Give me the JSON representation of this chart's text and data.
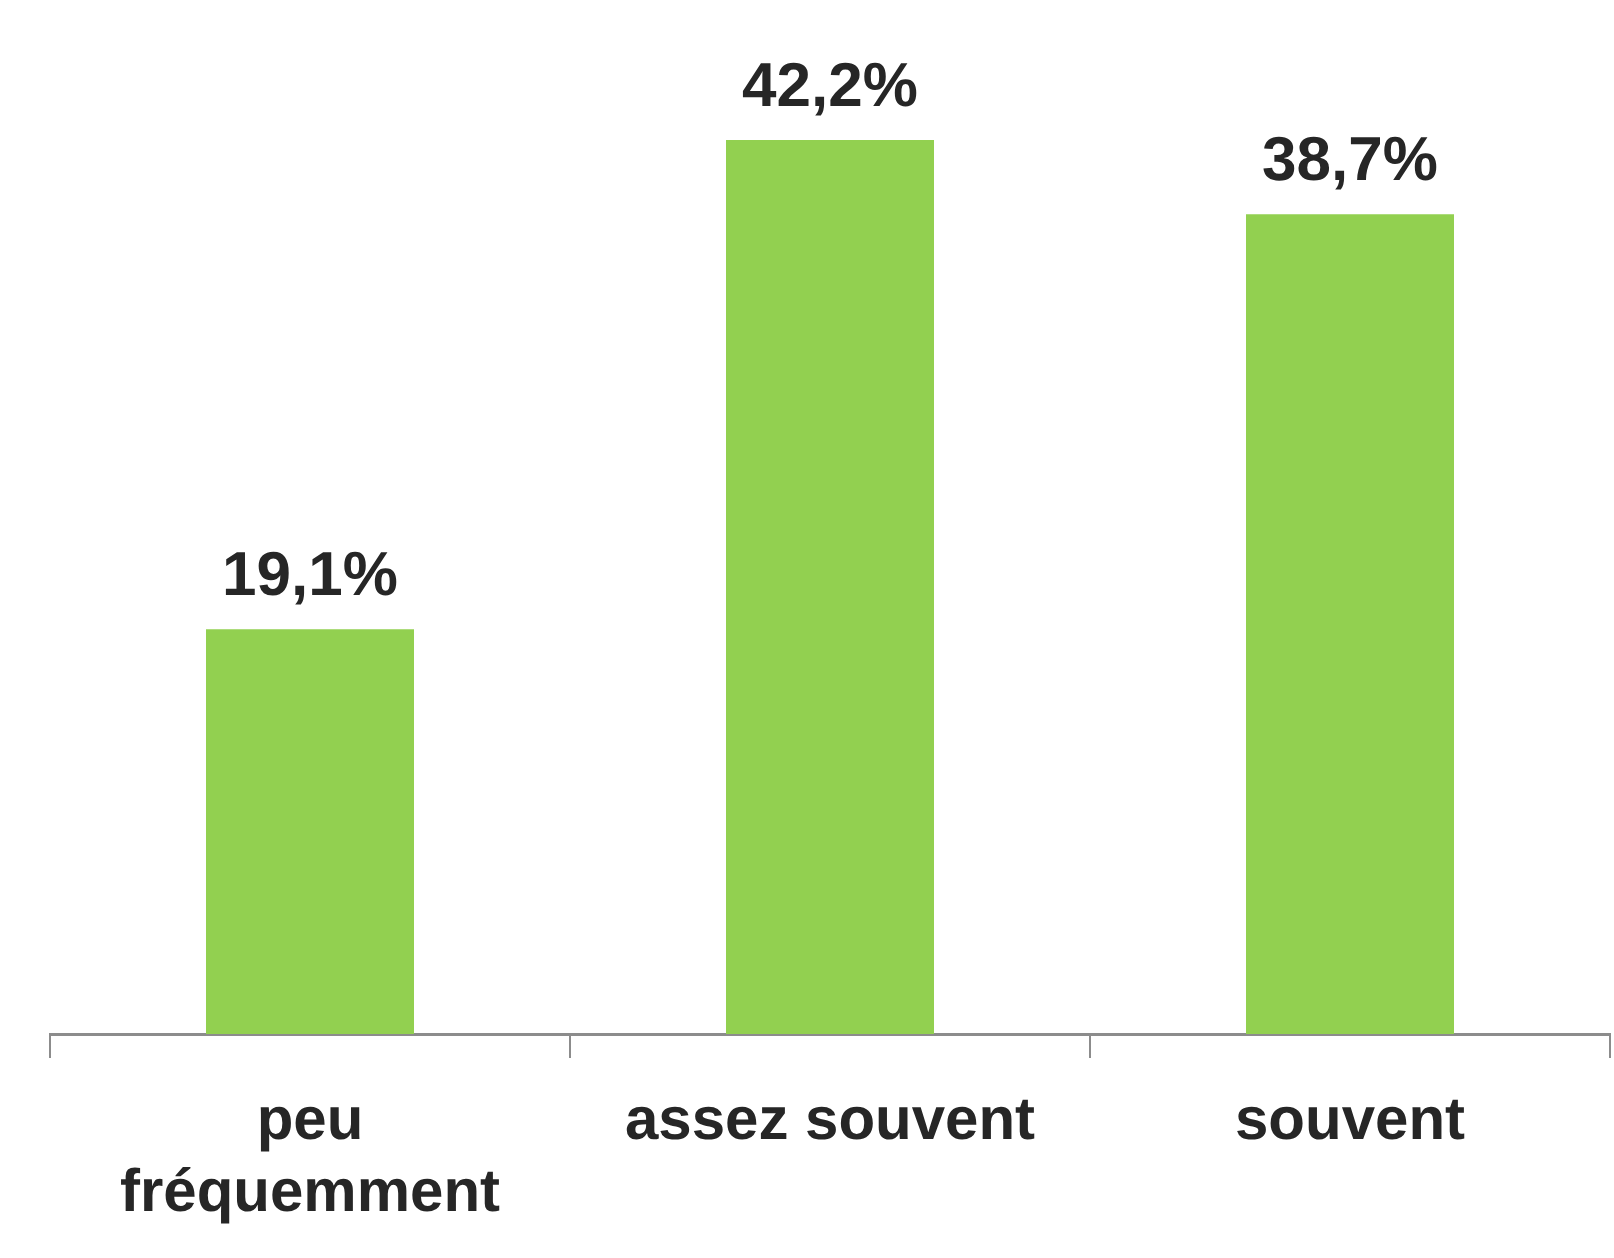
{
  "chart_data": {
    "type": "bar",
    "categories": [
      "peu\nfréquemment",
      "assez souvent",
      "souvent"
    ],
    "values": [
      19.1,
      42.2,
      38.7
    ],
    "color": "#92d050",
    "value_labels": [
      "19,1%",
      "42,2%",
      "38,7%"
    ],
    "grid": false,
    "legend": false
  }
}
